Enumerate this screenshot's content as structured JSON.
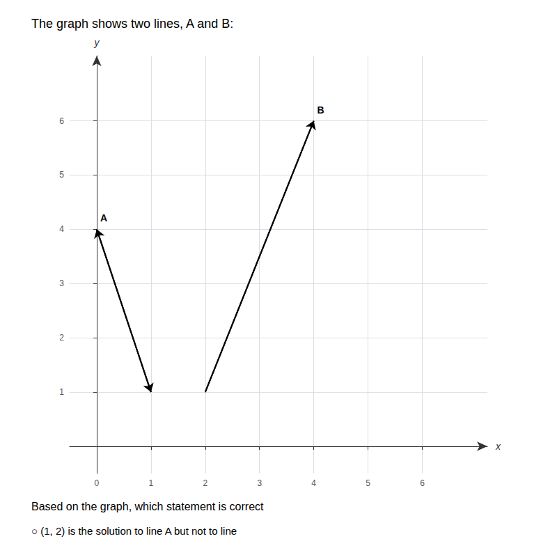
{
  "chart_data": {
    "type": "line",
    "title": "The graph shows two lines, A and B:",
    "subtitle": "Based on the graph, which statement is correct",
    "annotations": [
      "○ (1, 2) is the solution to line A but not to line"
    ],
    "xlabel": "x",
    "ylabel": "y",
    "series": [
      {
        "name": "A",
        "x": [
          0.0,
          1.0
        ],
        "values": [
          4.0,
          1.0
        ],
        "marker": "double_arrow",
        "color": "#000000"
      },
      {
        "name": "B",
        "x": [
          2.0,
          4.0
        ],
        "values": [
          1.0,
          6.0
        ],
        "marker": "arrow",
        "color": "#000000"
      }
    ],
    "xlim": [
      -0.5,
      7.2
    ],
    "ylim": [
      -0.5,
      7.2
    ],
    "xticks": [
      0,
      1,
      2,
      3,
      4,
      5,
      6
    ],
    "yticks": [
      1,
      2,
      3,
      4,
      5,
      6
    ],
    "grid": true
  }
}
